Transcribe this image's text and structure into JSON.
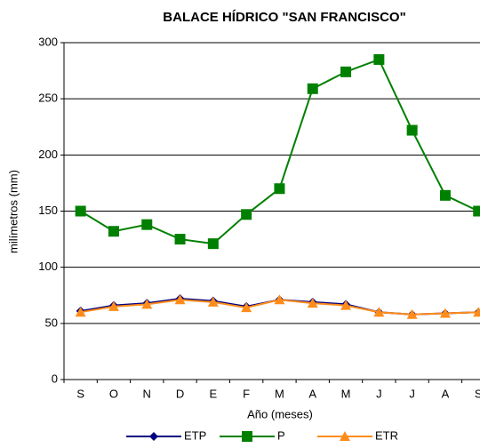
{
  "chart_data": {
    "type": "line",
    "title": "BALACE HÍDRICO  \"SAN FRANCISCO\"",
    "y_label": "milímetros (mm)",
    "x_label": "Año (meses)",
    "categories": [
      "S",
      "O",
      "N",
      "D",
      "E",
      "F",
      "M",
      "A",
      "M",
      "J",
      "J",
      "A",
      "S"
    ],
    "series": [
      {
        "name": "ETP",
        "color": "#000080",
        "marker": "diamond",
        "values": [
          61,
          66,
          68,
          72,
          70,
          65,
          71,
          69,
          67,
          60,
          58,
          59,
          60
        ]
      },
      {
        "name": "P",
        "color": "#008000",
        "marker": "square",
        "values": [
          150,
          132,
          138,
          125,
          121,
          147,
          170,
          259,
          274,
          285,
          222,
          164,
          150
        ]
      },
      {
        "name": "ETR",
        "color": "#ff8c1a",
        "marker": "triangle",
        "values": [
          60,
          65,
          67,
          71,
          69,
          64,
          71,
          68,
          66,
          60,
          58,
          59,
          60
        ]
      }
    ],
    "ylim": [
      0,
      300
    ],
    "yticks": [
      0,
      50,
      100,
      150,
      200,
      250,
      300
    ],
    "grid": true,
    "legend": "bottom"
  }
}
